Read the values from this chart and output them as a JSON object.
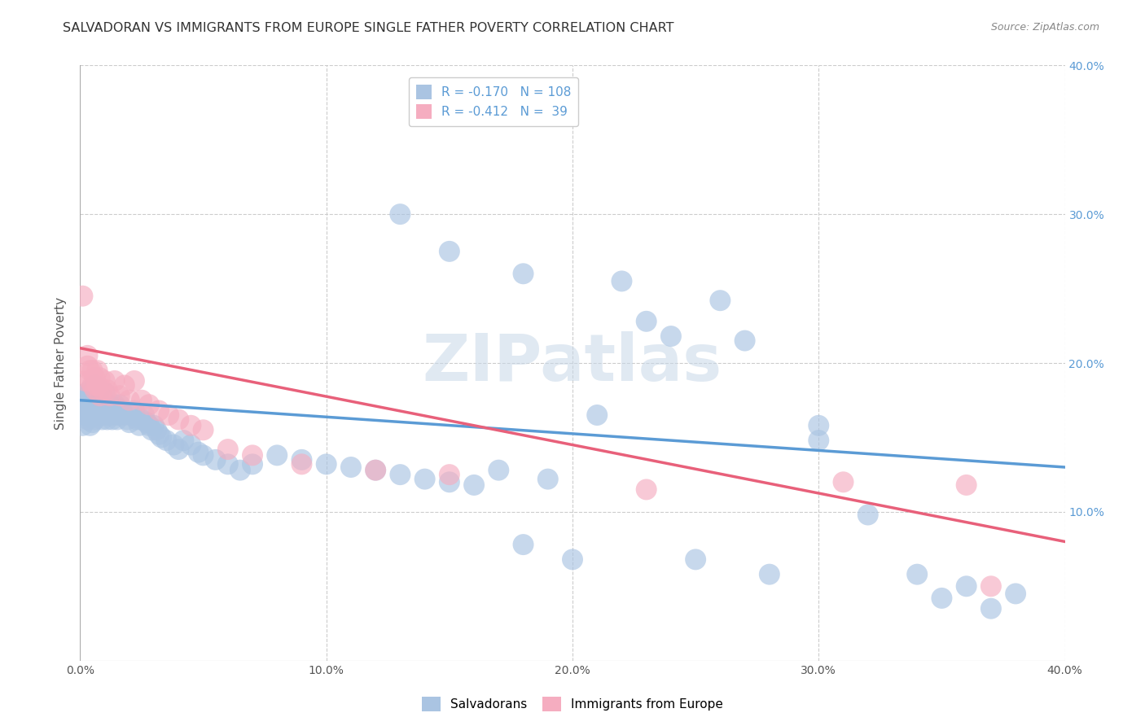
{
  "title": "SALVADORAN VS IMMIGRANTS FROM EUROPE SINGLE FATHER POVERTY CORRELATION CHART",
  "source": "Source: ZipAtlas.com",
  "ylabel": "Single Father Poverty",
  "x_min": 0.0,
  "x_max": 0.4,
  "y_min": 0.0,
  "y_max": 0.4,
  "salvadoran_color": "#aac4e2",
  "europe_color": "#f5adc0",
  "blue_line_color": "#5b9bd5",
  "pink_line_color": "#e8607a",
  "legend_R1": "R = -0.170",
  "legend_N1": "N = 108",
  "legend_R2": "R = -0.412",
  "legend_N2": "N =  39",
  "R1": -0.17,
  "N1": 108,
  "R2": -0.412,
  "N2": 39,
  "watermark": "ZIPatlas",
  "background_color": "#ffffff",
  "grid_color": "#cccccc",
  "blue_trend": [
    0.175,
    0.13
  ],
  "pink_trend": [
    0.21,
    0.08
  ],
  "sal_x": [
    0.001,
    0.001,
    0.002,
    0.002,
    0.002,
    0.003,
    0.003,
    0.003,
    0.003,
    0.004,
    0.004,
    0.004,
    0.004,
    0.004,
    0.005,
    0.005,
    0.005,
    0.005,
    0.005,
    0.006,
    0.006,
    0.006,
    0.006,
    0.006,
    0.007,
    0.007,
    0.007,
    0.008,
    0.008,
    0.008,
    0.009,
    0.009,
    0.009,
    0.01,
    0.01,
    0.01,
    0.011,
    0.011,
    0.012,
    0.012,
    0.013,
    0.013,
    0.014,
    0.014,
    0.015,
    0.015,
    0.016,
    0.016,
    0.017,
    0.018,
    0.019,
    0.02,
    0.021,
    0.022,
    0.023,
    0.024,
    0.025,
    0.026,
    0.027,
    0.028,
    0.029,
    0.03,
    0.031,
    0.032,
    0.033,
    0.035,
    0.038,
    0.04,
    0.042,
    0.045,
    0.048,
    0.05,
    0.055,
    0.06,
    0.065,
    0.07,
    0.08,
    0.09,
    0.1,
    0.11,
    0.12,
    0.13,
    0.14,
    0.15,
    0.16,
    0.17,
    0.19,
    0.21,
    0.23,
    0.26,
    0.3,
    0.32,
    0.34,
    0.36,
    0.38,
    0.13,
    0.15,
    0.18,
    0.22,
    0.24,
    0.27,
    0.3,
    0.18,
    0.2,
    0.25,
    0.28,
    0.35,
    0.37
  ],
  "sal_y": [
    0.158,
    0.168,
    0.165,
    0.175,
    0.178,
    0.162,
    0.168,
    0.172,
    0.18,
    0.158,
    0.165,
    0.17,
    0.175,
    0.182,
    0.16,
    0.165,
    0.17,
    0.175,
    0.18,
    0.162,
    0.168,
    0.172,
    0.178,
    0.185,
    0.165,
    0.172,
    0.18,
    0.168,
    0.175,
    0.182,
    0.162,
    0.17,
    0.178,
    0.165,
    0.172,
    0.18,
    0.162,
    0.17,
    0.165,
    0.172,
    0.162,
    0.17,
    0.165,
    0.172,
    0.162,
    0.17,
    0.165,
    0.172,
    0.168,
    0.165,
    0.162,
    0.16,
    0.165,
    0.168,
    0.162,
    0.158,
    0.162,
    0.165,
    0.16,
    0.158,
    0.155,
    0.158,
    0.155,
    0.152,
    0.15,
    0.148,
    0.145,
    0.142,
    0.148,
    0.145,
    0.14,
    0.138,
    0.135,
    0.132,
    0.128,
    0.132,
    0.138,
    0.135,
    0.132,
    0.13,
    0.128,
    0.125,
    0.122,
    0.12,
    0.118,
    0.128,
    0.122,
    0.165,
    0.228,
    0.242,
    0.148,
    0.098,
    0.058,
    0.05,
    0.045,
    0.3,
    0.275,
    0.26,
    0.255,
    0.218,
    0.215,
    0.158,
    0.078,
    0.068,
    0.068,
    0.058,
    0.042,
    0.035
  ],
  "eur_x": [
    0.001,
    0.002,
    0.003,
    0.003,
    0.004,
    0.004,
    0.005,
    0.005,
    0.006,
    0.006,
    0.007,
    0.007,
    0.008,
    0.008,
    0.009,
    0.01,
    0.011,
    0.012,
    0.014,
    0.016,
    0.018,
    0.02,
    0.022,
    0.025,
    0.028,
    0.032,
    0.036,
    0.04,
    0.045,
    0.05,
    0.06,
    0.07,
    0.09,
    0.12,
    0.15,
    0.23,
    0.31,
    0.36,
    0.37
  ],
  "eur_y": [
    0.245,
    0.188,
    0.198,
    0.205,
    0.188,
    0.195,
    0.185,
    0.195,
    0.182,
    0.19,
    0.185,
    0.195,
    0.178,
    0.19,
    0.182,
    0.188,
    0.182,
    0.178,
    0.188,
    0.178,
    0.185,
    0.175,
    0.188,
    0.175,
    0.172,
    0.168,
    0.165,
    0.162,
    0.158,
    0.155,
    0.142,
    0.138,
    0.132,
    0.128,
    0.125,
    0.115,
    0.12,
    0.118,
    0.05
  ]
}
